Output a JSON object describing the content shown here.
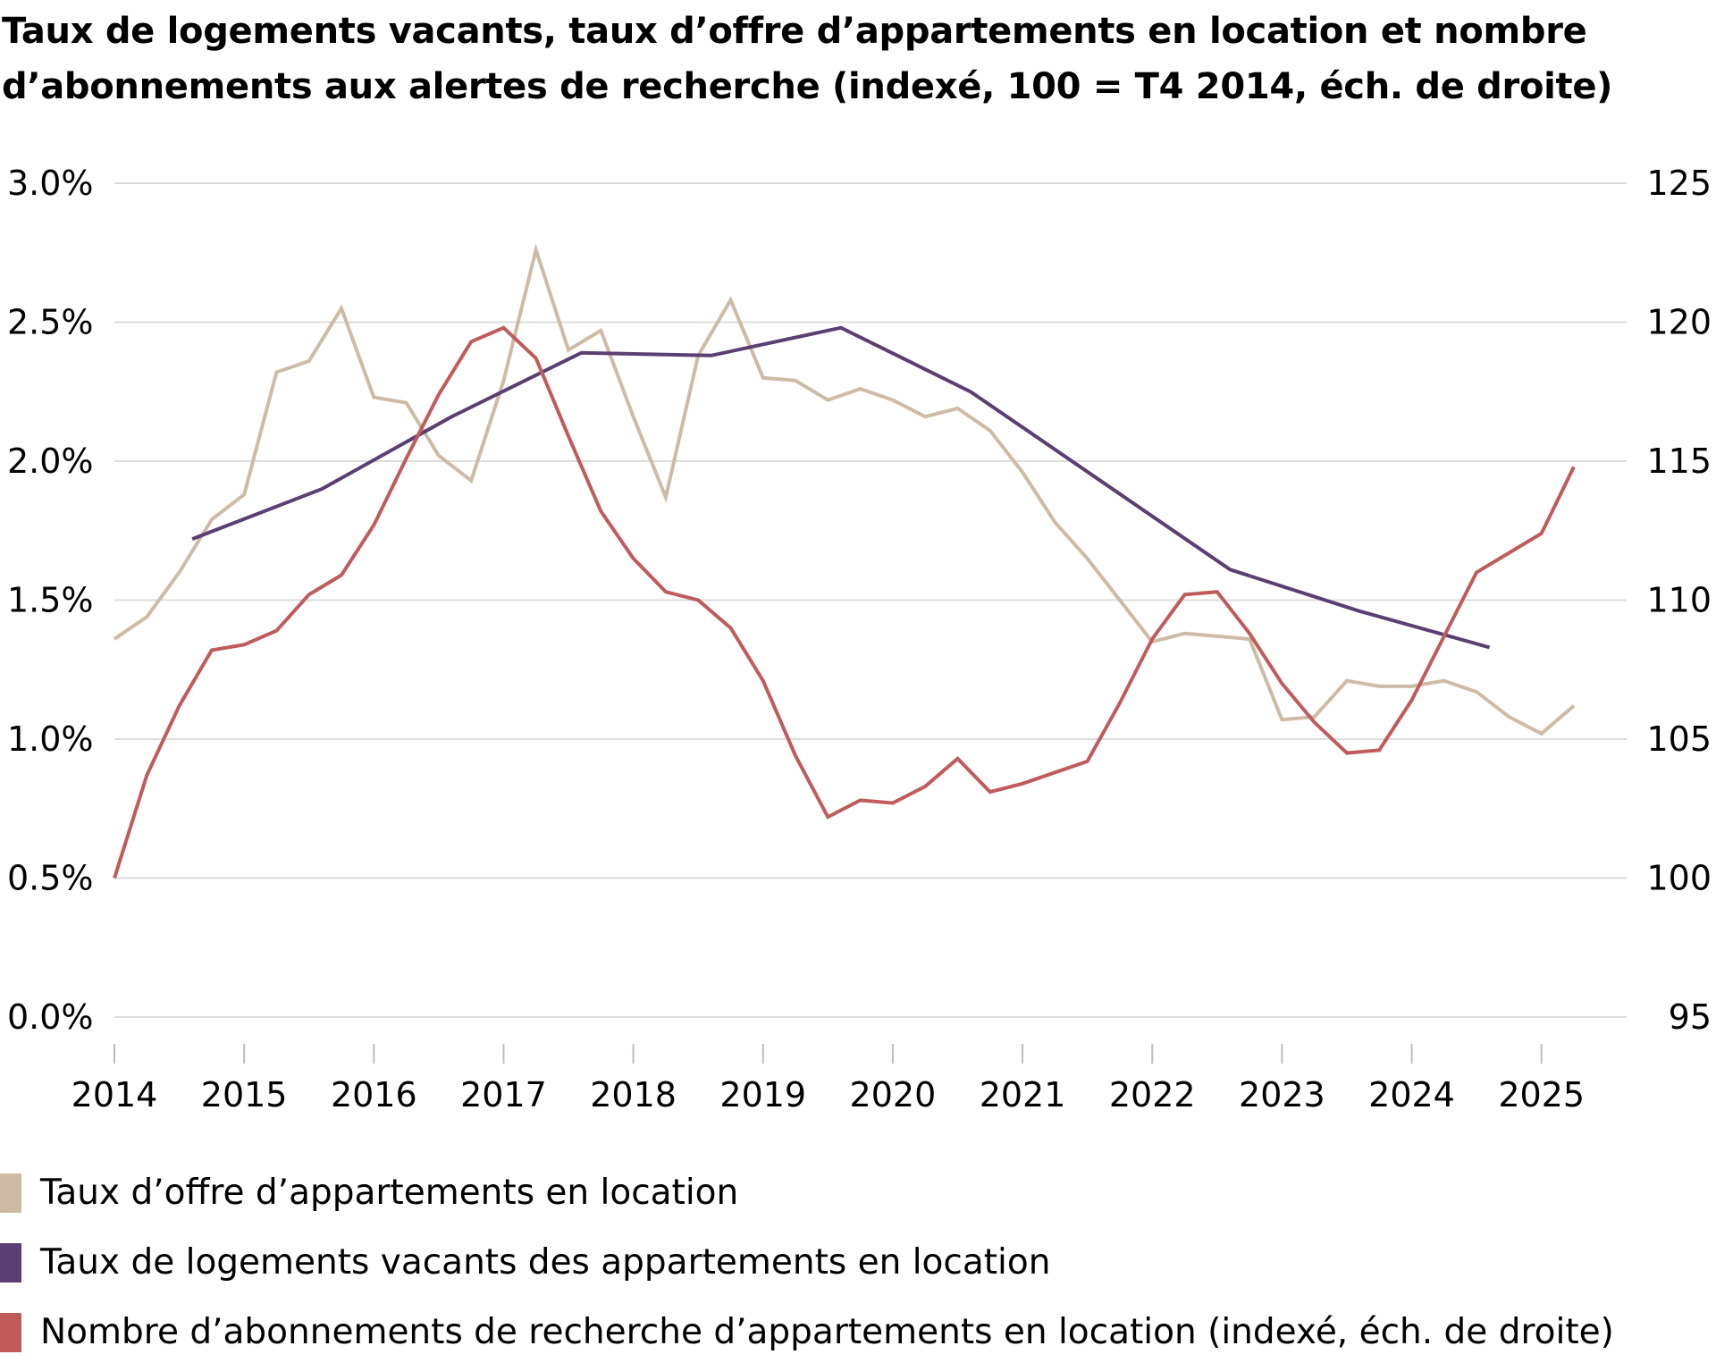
{
  "chart_data": {
    "type": "line",
    "title": "Taux de logements vacants, taux d’offre d’appartements en location et nombre d’abonnements aux alertes de recherche (indexé, 100 = T4 2014, éch. de droite)",
    "x_ticks": [
      "2014",
      "2015",
      "2016",
      "2017",
      "2018",
      "2019",
      "2020",
      "2021",
      "2022",
      "2023",
      "2024",
      "2025"
    ],
    "xlim": [
      2014,
      2025.45
    ],
    "y_left": {
      "ticks": [
        "0.0%",
        "0.5%",
        "1.0%",
        "1.5%",
        "2.0%",
        "2.5%",
        "3.0%"
      ],
      "ylim": [
        0,
        3.0
      ]
    },
    "y_right": {
      "ticks": [
        "95",
        "100",
        "105",
        "110",
        "115",
        "120",
        "125"
      ],
      "ylim": [
        95,
        125
      ]
    },
    "grid": true,
    "legend_position": "bottom",
    "series": [
      {
        "name": "Taux d’offre d’appartements en location",
        "color": "#cdbba6",
        "axis": "left",
        "x": [
          2014.0,
          2014.25,
          2014.5,
          2014.75,
          2015.0,
          2015.25,
          2015.5,
          2015.75,
          2016.0,
          2016.25,
          2016.5,
          2016.75,
          2017.0,
          2017.25,
          2017.5,
          2017.75,
          2018.0,
          2018.25,
          2018.5,
          2018.75,
          2019.0,
          2019.25,
          2019.5,
          2019.75,
          2020.0,
          2020.25,
          2020.5,
          2020.75,
          2021.0,
          2021.25,
          2021.5,
          2021.75,
          2022.0,
          2022.25,
          2022.5,
          2022.75,
          2023.0,
          2023.25,
          2023.5,
          2023.75,
          2024.0,
          2024.25,
          2024.5,
          2024.75,
          2025.0,
          2025.25
        ],
        "values": [
          1.36,
          1.44,
          1.6,
          1.79,
          1.88,
          2.32,
          2.36,
          2.55,
          2.23,
          2.21,
          2.02,
          1.93,
          2.29,
          2.76,
          2.4,
          2.47,
          2.16,
          1.87,
          2.38,
          2.58,
          2.3,
          2.29,
          2.22,
          2.26,
          2.22,
          2.16,
          2.19,
          2.11,
          1.96,
          1.78,
          1.65,
          1.5,
          1.35,
          1.38,
          1.37,
          1.36,
          1.07,
          1.08,
          1.21,
          1.19,
          1.19,
          1.21,
          1.17,
          1.08,
          1.02,
          1.12
        ]
      },
      {
        "name": "Taux de logements vacants des appartements en location",
        "color": "#5a3f72",
        "axis": "left",
        "x": [
          2014.6,
          2015.6,
          2016.6,
          2017.6,
          2018.6,
          2019.6,
          2020.6,
          2021.6,
          2022.6,
          2023.6,
          2024.6
        ],
        "values": [
          1.72,
          1.9,
          2.16,
          2.39,
          2.38,
          2.48,
          2.25,
          1.93,
          1.61,
          1.46,
          1.33
        ]
      },
      {
        "name": "Nombre d’abonnements de recherche d’appartements en location (indexé, éch. de droite)",
        "color": "#c05b5b",
        "axis": "right",
        "x": [
          2014.0,
          2014.25,
          2014.5,
          2014.75,
          2015.0,
          2015.25,
          2015.5,
          2015.75,
          2016.0,
          2016.25,
          2016.5,
          2016.75,
          2017.0,
          2017.25,
          2017.5,
          2017.75,
          2018.0,
          2018.25,
          2018.5,
          2018.75,
          2019.0,
          2019.25,
          2019.5,
          2019.75,
          2020.0,
          2020.25,
          2020.5,
          2020.75,
          2021.0,
          2021.25,
          2021.5,
          2021.75,
          2022.0,
          2022.25,
          2022.5,
          2022.75,
          2023.0,
          2023.25,
          2023.5,
          2023.75,
          2024.0,
          2024.25,
          2024.5,
          2024.75,
          2025.0,
          2025.25
        ],
        "values": [
          100.0,
          103.7,
          106.2,
          108.2,
          108.4,
          108.9,
          110.2,
          110.9,
          112.7,
          115.1,
          117.4,
          119.3,
          119.8,
          118.7,
          115.9,
          113.2,
          111.5,
          110.3,
          110.0,
          109.0,
          107.1,
          104.4,
          102.2,
          102.8,
          102.7,
          103.3,
          104.3,
          103.1,
          103.4,
          103.8,
          104.2,
          106.3,
          108.6,
          110.2,
          110.3,
          108.8,
          107.0,
          105.6,
          104.5,
          104.6,
          106.4,
          108.7,
          111.0,
          111.7,
          112.4,
          114.8
        ]
      }
    ]
  }
}
